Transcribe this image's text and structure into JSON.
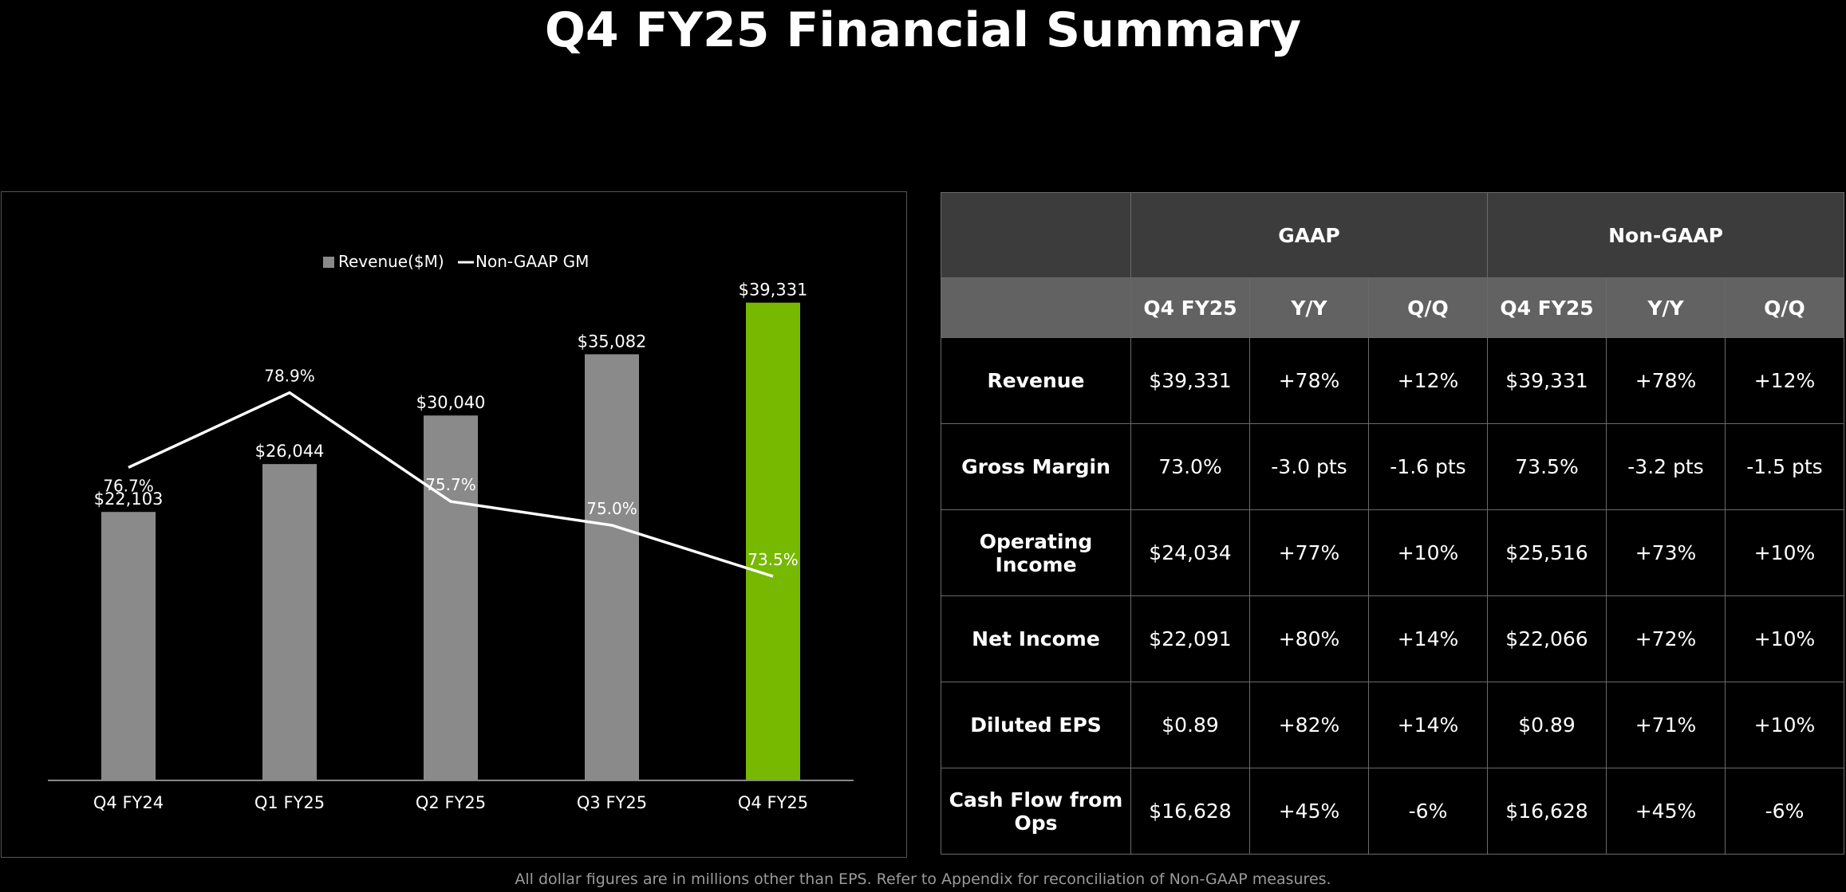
{
  "title": "Q4 FY25 Financial Summary",
  "footnote": "All dollar figures are in millions other than EPS. Refer to Appendix for reconciliation of Non-GAAP measures.",
  "colors": {
    "bar": "#8a8a8a",
    "highlight_bar": "#76b900",
    "line": "#ffffff",
    "axis": "#888888"
  },
  "chart_data": {
    "type": "bar",
    "categories": [
      "Q4 FY24",
      "Q1 FY25",
      "Q2 FY25",
      "Q3 FY25",
      "Q4 FY25"
    ],
    "series": [
      {
        "name": "Revenue($M)",
        "type": "bar",
        "values": [
          22103,
          26044,
          30040,
          35082,
          39331
        ],
        "labels": [
          "$22,103",
          "$26,044",
          "$30,040",
          "$35,082",
          "$39,331"
        ],
        "highlight_index": 4
      },
      {
        "name": "Non-GAAP GM",
        "type": "line",
        "values": [
          76.7,
          78.9,
          75.7,
          75.0,
          73.5
        ],
        "labels": [
          "76.7%",
          "78.9%",
          "75.7%",
          "75.0%",
          "73.5%"
        ]
      }
    ],
    "legend": [
      "Revenue($M)",
      "Non-GAAP GM"
    ],
    "legend_position": "top-center",
    "ylim": [
      0,
      42000
    ],
    "y2lim": [
      67.5,
      82.5
    ],
    "grid": false
  },
  "table": {
    "group_headers": [
      "GAAP",
      "Non-GAAP"
    ],
    "sub_headers": [
      "Q4 FY25",
      "Y/Y",
      "Q/Q",
      "Q4 FY25",
      "Y/Y",
      "Q/Q"
    ],
    "rows": [
      {
        "metric": "Revenue",
        "cells": [
          "$39,331",
          "+78%",
          "+12%",
          "$39,331",
          "+78%",
          "+12%"
        ]
      },
      {
        "metric": "Gross Margin",
        "cells": [
          "73.0%",
          "-3.0 pts",
          "-1.6 pts",
          "73.5%",
          "-3.2 pts",
          "-1.5 pts"
        ]
      },
      {
        "metric": "Operating Income",
        "cells": [
          "$24,034",
          "+77%",
          "+10%",
          "$25,516",
          "+73%",
          "+10%"
        ]
      },
      {
        "metric": "Net Income",
        "cells": [
          "$22,091",
          "+80%",
          "+14%",
          "$22,066",
          "+72%",
          "+10%"
        ]
      },
      {
        "metric": "Diluted EPS",
        "cells": [
          "$0.89",
          "+82%",
          "+14%",
          "$0.89",
          "+71%",
          "+10%"
        ]
      },
      {
        "metric": "Cash Flow from Ops",
        "cells": [
          "$16,628",
          "+45%",
          "-6%",
          "$16,628",
          "+45%",
          "-6%"
        ]
      }
    ]
  }
}
